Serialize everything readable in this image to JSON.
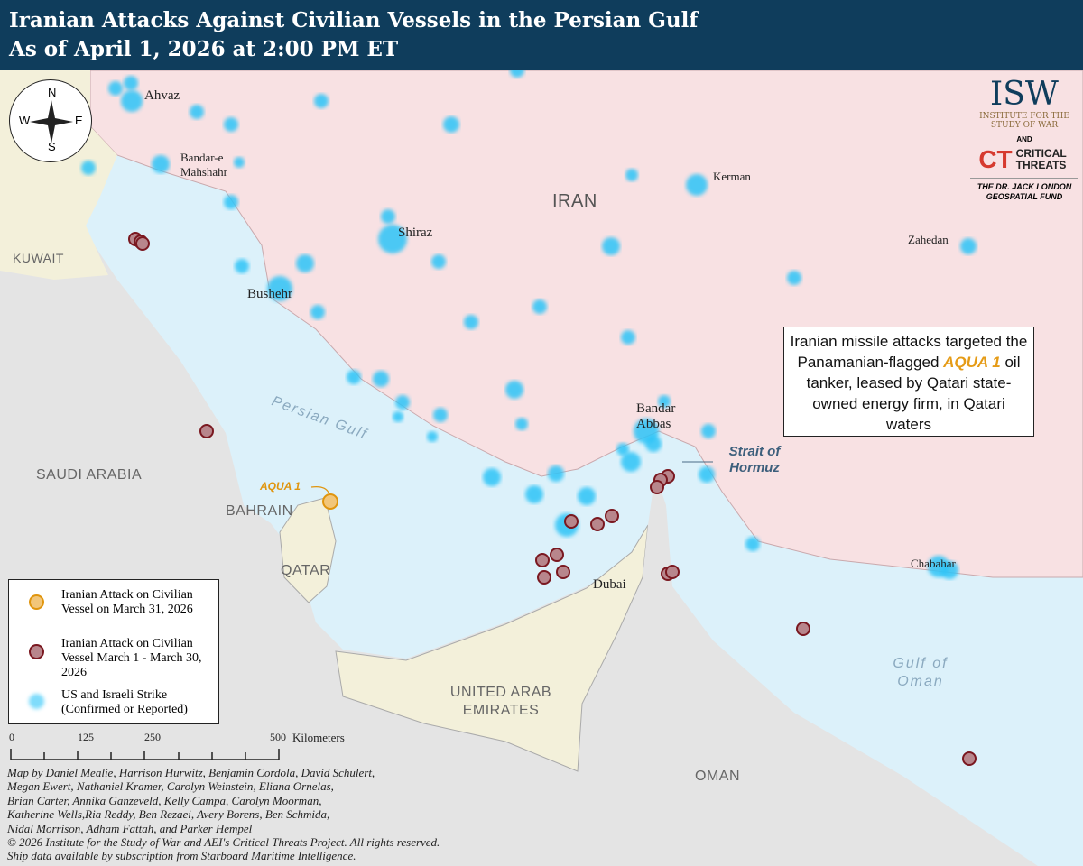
{
  "header": {
    "title": "Iranian Attacks Against Civilian Vessels in the Persian Gulf",
    "subtitle": "As of April 1, 2026 at 2:00 PM ET"
  },
  "colors": {
    "header": "#0f3d5c",
    "iran": "#f8e1e3",
    "sea": "#dcf1fa",
    "gulf_states": "#f3f0da",
    "other_land": "#e4e4e4",
    "strike": "#2ec4f7",
    "attack_march": "#b8868c",
    "attack_march_border": "#7a1820",
    "aqua1": "#f2c67a",
    "aqua1_border": "#e0950e"
  },
  "compass": {
    "n": "N",
    "s": "S",
    "e": "E",
    "w": "W"
  },
  "cities": {
    "ahvaz": "Ahvaz",
    "mahshahr": "Bandar-e Mahshahr",
    "shiraz": "Shiraz",
    "bushehr": "Bushehr",
    "kerman": "Kerman",
    "zahedan": "Zahedan",
    "bandar_abbas": "Bandar Abbas",
    "dubai": "Dubai",
    "chabahar": "Chabahar"
  },
  "countries": {
    "iran": "IRAN",
    "kuwait": "KUWAIT",
    "saudi": "SAUDI ARABIA",
    "bahrain": "BAHRAIN",
    "qatar": "QATAR",
    "uae": "UNITED ARAB EMIRATES",
    "oman": "OMAN"
  },
  "water": {
    "gulf": "Persian Gulf",
    "oman_gulf": "Gulf of Oman",
    "hormuz": "Strait of Hormuz"
  },
  "aqua1_label": "AQUA 1",
  "callout": {
    "pre": "Iranian missile attacks targeted the Panamanian-flagged ",
    "ship": "AQUA 1",
    "post": " oil tanker, leased by Qatari state-owned energy firm, in Qatari waters"
  },
  "legend": [
    {
      "label": "Iranian Attack on Civilian Vessel on March 31, 2026"
    },
    {
      "label": "Iranian Attack on Civilian Vessel March 1 - March 30, 2026"
    },
    {
      "label": "US and Israeli Strike (Confirmed or Reported)"
    }
  ],
  "scale": {
    "ticks": [
      "0",
      "125",
      "250",
      "500"
    ],
    "unit": "Kilometers"
  },
  "credits": [
    "Map by Daniel Mealie, Harrison Hurwitz, Benjamin Cordola, David Schulert,",
    "Megan Ewert, Nathaniel Kramer, Carolyn Weinstein, Eliana Ornelas,",
    "Brian Carter, Annika Ganzeveld, Kelly Campa, Carolyn Moorman,",
    "Katherine Wells,Ria Reddy, Ben Rezaei, Avery Borens, Ben Schmida,",
    "Nidal Morrison, Adham Fattah, and Parker Hempel",
    "© 2026 Institute for the Study of War and AEI's Critical Threats Project. All rights reserved.",
    "Ship data available by subscription from Starboard Maritime Intelligence."
  ],
  "logo": {
    "isw": "ISW",
    "isw_sub": "INSTITUTE FOR THE STUDY OF WAR",
    "and": "AND",
    "ct": "CT",
    "ct_name": "CRITICAL THREATS",
    "fund": "THE DR. JACK LONDON GEOSPATIAL FUND"
  }
}
